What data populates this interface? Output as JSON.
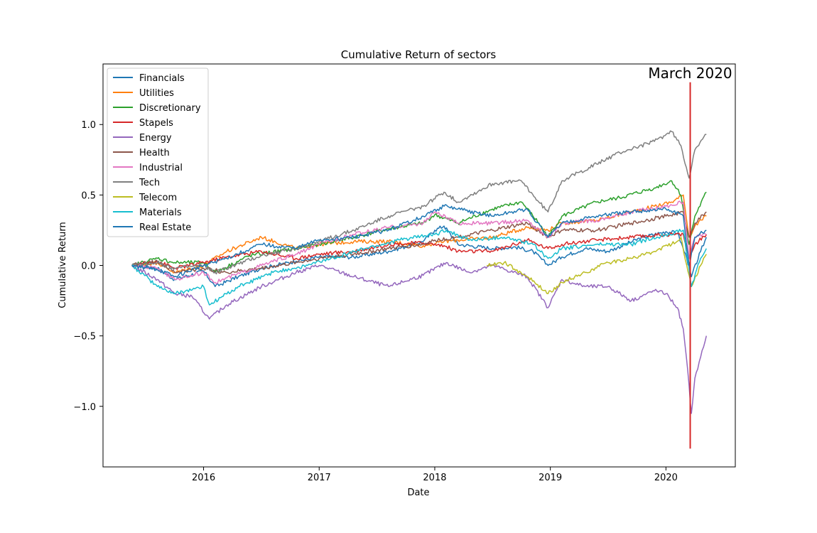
{
  "chart_data": {
    "type": "line",
    "title": "Cumulative Return of sectors",
    "xlabel": "Date",
    "ylabel": "Cumulative Return",
    "xlim": [
      2015.13,
      2020.6
    ],
    "ylim": [
      -1.43,
      1.43
    ],
    "x_ticks": [
      {
        "value": 2016,
        "label": "2016"
      },
      {
        "value": 2017,
        "label": "2017"
      },
      {
        "value": 2018,
        "label": "2018"
      },
      {
        "value": 2019,
        "label": "2019"
      },
      {
        "value": 2020,
        "label": "2020"
      }
    ],
    "y_ticks": [
      {
        "value": 1.0,
        "label": "1.0"
      },
      {
        "value": 0.5,
        "label": "0.5"
      },
      {
        "value": 0.0,
        "label": "0.0"
      },
      {
        "value": -0.5,
        "label": "−0.5"
      },
      {
        "value": -1.0,
        "label": "−1.0"
      }
    ],
    "grid": false,
    "legend_position": "upper-left",
    "series": [
      {
        "name": "Financials",
        "color": "#1f77b4",
        "x": [
          2015.38,
          2015.6,
          2015.75,
          2016.0,
          2016.1,
          2016.3,
          2016.5,
          2016.8,
          2017.0,
          2017.3,
          2017.6,
          2017.9,
          2018.0,
          2018.08,
          2018.2,
          2018.5,
          2018.7,
          2018.85,
          2018.98,
          2019.1,
          2019.3,
          2019.5,
          2019.8,
          2020.0,
          2020.1,
          2020.18,
          2020.22,
          2020.3,
          2020.35
        ],
        "y": [
          0.0,
          -0.02,
          -0.1,
          -0.04,
          -0.15,
          -0.08,
          -0.02,
          0.03,
          0.06,
          0.06,
          0.1,
          0.17,
          0.25,
          0.28,
          0.15,
          0.12,
          0.13,
          0.1,
          0.0,
          0.06,
          0.12,
          0.1,
          0.2,
          0.24,
          0.23,
          0.05,
          -0.08,
          0.1,
          0.2
        ]
      },
      {
        "name": "Utilities",
        "color": "#ff7f0e",
        "x": [
          2015.38,
          2015.6,
          2015.75,
          2016.0,
          2016.2,
          2016.5,
          2016.8,
          2017.0,
          2017.3,
          2017.6,
          2017.9,
          2018.08,
          2018.2,
          2018.5,
          2018.8,
          2018.98,
          2019.1,
          2019.4,
          2019.7,
          2019.9,
          2020.05,
          2020.15,
          2020.2,
          2020.25,
          2020.35
        ],
        "y": [
          0.0,
          0.02,
          -0.05,
          0.0,
          0.1,
          0.2,
          0.12,
          0.15,
          0.17,
          0.17,
          0.14,
          0.17,
          0.18,
          0.2,
          0.27,
          0.25,
          0.3,
          0.32,
          0.38,
          0.42,
          0.45,
          0.5,
          0.2,
          0.28,
          0.35
        ]
      },
      {
        "name": "Discretionary",
        "color": "#2ca02c",
        "x": [
          2015.38,
          2015.6,
          2015.75,
          2016.0,
          2016.1,
          2016.4,
          2016.8,
          2017.0,
          2017.3,
          2017.6,
          2017.9,
          2018.0,
          2018.2,
          2018.5,
          2018.75,
          2018.9,
          2018.98,
          2019.1,
          2019.4,
          2019.6,
          2019.9,
          2020.05,
          2020.13,
          2020.2,
          2020.25,
          2020.35
        ],
        "y": [
          0.0,
          0.05,
          0.02,
          0.02,
          -0.05,
          0.07,
          0.12,
          0.15,
          0.2,
          0.26,
          0.3,
          0.36,
          0.3,
          0.4,
          0.45,
          0.3,
          0.2,
          0.35,
          0.45,
          0.48,
          0.55,
          0.6,
          0.5,
          0.15,
          0.35,
          0.52
        ]
      },
      {
        "name": "Stapels",
        "color": "#d62728",
        "x": [
          2015.38,
          2015.6,
          2015.75,
          2016.0,
          2016.2,
          2016.5,
          2016.8,
          2017.0,
          2017.3,
          2017.6,
          2017.9,
          2018.08,
          2018.2,
          2018.5,
          2018.8,
          2018.98,
          2019.1,
          2019.4,
          2019.7,
          2020.0,
          2020.15,
          2020.2,
          2020.25,
          2020.35
        ],
        "y": [
          0.0,
          0.03,
          -0.02,
          0.02,
          0.06,
          0.1,
          0.05,
          0.08,
          0.1,
          0.15,
          0.16,
          0.14,
          0.1,
          0.1,
          0.18,
          0.12,
          0.15,
          0.18,
          0.2,
          0.22,
          0.22,
          0.05,
          0.15,
          0.22
        ]
      },
      {
        "name": "Energy",
        "color": "#9467bd",
        "x": [
          2015.38,
          2015.6,
          2015.75,
          2015.9,
          2016.05,
          2016.2,
          2016.5,
          2016.8,
          2017.0,
          2017.3,
          2017.6,
          2017.9,
          2018.1,
          2018.3,
          2018.5,
          2018.8,
          2018.98,
          2019.1,
          2019.3,
          2019.5,
          2019.7,
          2019.9,
          2020.0,
          2020.1,
          2020.15,
          2020.2,
          2020.22,
          2020.25,
          2020.3,
          2020.35
        ],
        "y": [
          0.0,
          -0.1,
          -0.2,
          -0.22,
          -0.38,
          -0.28,
          -0.15,
          -0.05,
          0.0,
          -0.08,
          -0.15,
          -0.07,
          0.02,
          -0.05,
          0.0,
          -0.08,
          -0.3,
          -0.1,
          -0.15,
          -0.15,
          -0.25,
          -0.18,
          -0.2,
          -0.3,
          -0.45,
          -0.85,
          -1.05,
          -0.8,
          -0.65,
          -0.5
        ]
      },
      {
        "name": "Health",
        "color": "#8c564b",
        "x": [
          2015.38,
          2015.6,
          2015.75,
          2016.0,
          2016.2,
          2016.5,
          2016.8,
          2017.0,
          2017.3,
          2017.6,
          2017.9,
          2018.0,
          2018.2,
          2018.5,
          2018.8,
          2018.98,
          2019.1,
          2019.4,
          2019.7,
          2020.0,
          2020.15,
          2020.2,
          2020.25,
          2020.35
        ],
        "y": [
          0.0,
          0.03,
          -0.05,
          -0.02,
          -0.05,
          -0.02,
          0.02,
          0.05,
          0.08,
          0.12,
          0.15,
          0.18,
          0.2,
          0.25,
          0.3,
          0.2,
          0.25,
          0.25,
          0.3,
          0.35,
          0.38,
          0.2,
          0.3,
          0.38
        ]
      },
      {
        "name": "Industrial",
        "color": "#e377c2",
        "x": [
          2015.38,
          2015.6,
          2015.75,
          2016.0,
          2016.1,
          2016.5,
          2016.8,
          2017.0,
          2017.3,
          2017.6,
          2017.9,
          2018.0,
          2018.2,
          2018.5,
          2018.8,
          2018.98,
          2019.1,
          2019.4,
          2019.7,
          2020.0,
          2020.15,
          2020.2,
          2020.25,
          2020.35
        ],
        "y": [
          0.0,
          -0.02,
          -0.1,
          -0.05,
          -0.12,
          0.0,
          0.08,
          0.15,
          0.22,
          0.27,
          0.3,
          0.38,
          0.3,
          0.3,
          0.32,
          0.2,
          0.3,
          0.32,
          0.38,
          0.42,
          0.45,
          0.05,
          0.2,
          0.22
        ]
      },
      {
        "name": "Tech",
        "color": "#7f7f7f",
        "x": [
          2015.38,
          2015.6,
          2015.75,
          2016.0,
          2016.1,
          2016.5,
          2016.8,
          2017.0,
          2017.3,
          2017.6,
          2017.9,
          2018.08,
          2018.2,
          2018.5,
          2018.75,
          2018.9,
          2018.98,
          2019.1,
          2019.4,
          2019.6,
          2019.9,
          2020.05,
          2020.13,
          2020.2,
          2020.25,
          2020.35
        ],
        "y": [
          0.0,
          0.02,
          -0.02,
          0.0,
          -0.05,
          0.07,
          0.12,
          0.17,
          0.25,
          0.35,
          0.42,
          0.52,
          0.45,
          0.58,
          0.6,
          0.45,
          0.38,
          0.6,
          0.72,
          0.8,
          0.88,
          0.95,
          0.85,
          0.62,
          0.82,
          0.93
        ]
      },
      {
        "name": "Telecom",
        "color": "#bcbd22",
        "x": [
          2018.45,
          2018.6,
          2018.8,
          2018.98,
          2019.1,
          2019.3,
          2019.5,
          2019.7,
          2019.9,
          2020.05,
          2020.13,
          2020.18,
          2020.22,
          2020.3,
          2020.35
        ],
        "y": [
          0.0,
          0.02,
          -0.08,
          -0.2,
          -0.12,
          -0.05,
          0.02,
          0.05,
          0.1,
          0.15,
          0.2,
          0.0,
          -0.15,
          0.0,
          0.08
        ]
      },
      {
        "name": "Materials",
        "color": "#17becf",
        "x": [
          2015.38,
          2015.6,
          2015.75,
          2016.0,
          2016.05,
          2016.3,
          2016.6,
          2016.9,
          2017.1,
          2017.4,
          2017.7,
          2018.0,
          2018.1,
          2018.3,
          2018.6,
          2018.85,
          2018.98,
          2019.1,
          2019.4,
          2019.7,
          2020.0,
          2020.15,
          2020.22,
          2020.3,
          2020.35
        ],
        "y": [
          0.0,
          -0.15,
          -0.2,
          -0.15,
          -0.28,
          -0.15,
          -0.05,
          0.0,
          0.05,
          0.12,
          0.18,
          0.22,
          0.25,
          0.18,
          0.2,
          0.15,
          0.05,
          0.12,
          0.15,
          0.15,
          0.22,
          0.25,
          -0.15,
          0.05,
          0.12
        ]
      },
      {
        "name": "Real Estate",
        "color": "#1f77b4",
        "x": [
          2015.38,
          2015.6,
          2015.75,
          2016.0,
          2016.2,
          2016.5,
          2016.8,
          2017.0,
          2017.3,
          2017.6,
          2017.9,
          2018.08,
          2018.2,
          2018.5,
          2018.8,
          2018.98,
          2019.1,
          2019.4,
          2019.7,
          2020.0,
          2020.15,
          2020.2,
          2020.25,
          2020.35
        ],
        "y": [
          0.0,
          -0.03,
          -0.08,
          0.0,
          0.05,
          0.15,
          0.12,
          0.18,
          0.2,
          0.25,
          0.35,
          0.42,
          0.4,
          0.35,
          0.4,
          0.2,
          0.3,
          0.35,
          0.38,
          0.4,
          0.35,
          0.0,
          0.2,
          0.25
        ]
      }
    ],
    "annotations": [
      {
        "text": "March 2020",
        "x": 2020.21,
        "y_from": -1.3,
        "y_to": 1.3,
        "color": "#d62728"
      }
    ]
  }
}
